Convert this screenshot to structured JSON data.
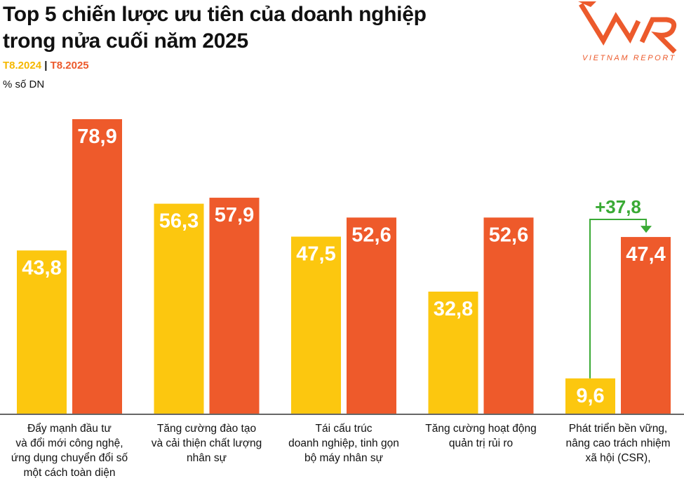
{
  "title_line1": "Top 5 chiến lược ưu tiên của doanh nghiệp",
  "title_line2": "trong nửa cuối năm 2025",
  "legend": {
    "a": "T8.2024",
    "sep": "|",
    "b": "T8.2025"
  },
  "unit": "% số DN",
  "logo_text": "VNR VIETNAM REPORT",
  "colors": {
    "T8.2024": "#fcc70f",
    "T8.2025": "#ee5a2b",
    "delta": "#3aaa35",
    "logo": "#ec5a2c"
  },
  "chart_data": {
    "type": "bar",
    "categories": [
      "Đẩy mạnh đầu tư\nvà đổi mới công nghệ,\nứng dụng chuyển đổi số\nmột cách toàn diện",
      "Tăng cường đào tạo\nvà cải thiện chất lượng\nnhân sự",
      "Tái cấu trúc\ndoanh nghiệp, tinh gọn\nbộ máy nhân sự",
      "Tăng cường hoạt động\nquản trị rủi ro",
      "Phát triển bền vững,\nnâng cao trách nhiệm\nxã hội (CSR),"
    ],
    "series": [
      {
        "name": "T8.2024",
        "values": [
          43.8,
          56.3,
          47.5,
          32.8,
          9.6
        ],
        "labels": [
          "43,8",
          "56,3",
          "47,5",
          "32,8",
          "9,6"
        ]
      },
      {
        "name": "T8.2025",
        "values": [
          78.9,
          57.9,
          52.6,
          52.6,
          47.4
        ],
        "labels": [
          "78,9",
          "57,9",
          "52,6",
          "52,6",
          "47,4"
        ]
      }
    ],
    "annotation": {
      "category_index": 4,
      "text": "+37,8"
    },
    "ylim": [
      0,
      80
    ],
    "ylabel": "% số DN",
    "grid": false
  }
}
